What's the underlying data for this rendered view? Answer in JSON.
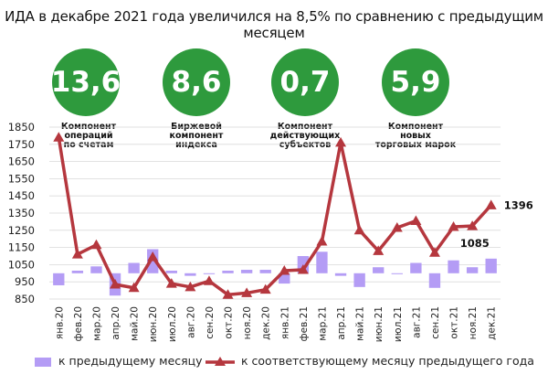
{
  "title": "ИДА в декабре 2021 года увеличился на 8,5% по сравнению с предыдущим месяцем",
  "kpis": [
    {
      "value": "13,6",
      "label_lines": [
        "Компонент",
        "операций",
        "по счетам"
      ]
    },
    {
      "value": "8,6",
      "label_lines": [
        "Биржевой",
        "компонент",
        "индекса"
      ]
    },
    {
      "value": "0,7",
      "label_lines": [
        "Компонент",
        "действующих",
        "субъектов"
      ]
    },
    {
      "value": "5,9",
      "label_lines": [
        "Компонент",
        "новых",
        "торговых марок"
      ]
    }
  ],
  "colors": {
    "kpi_green": "#2e9a3d",
    "bar": "#b49cf5",
    "line": "#b5373e",
    "grid": "#d9d9d9"
  },
  "chart_data": {
    "type": "bar",
    "categories": [
      "янв.20",
      "фев.20",
      "мар.20",
      "апр.20",
      "май.20",
      "июн.20",
      "июл.20",
      "авг.20",
      "сен.20",
      "окт.20",
      "ноя.20",
      "дек.20",
      "янв.21",
      "фев.21",
      "мар.21",
      "апр.21",
      "май.21",
      "июн.21",
      "июл.21",
      "авг.21",
      "сен.21",
      "окт.21",
      "ноя.21",
      "дек.21"
    ],
    "ylim": [
      850,
      1850
    ],
    "yticks": [
      850,
      950,
      1050,
      1150,
      1250,
      1350,
      1450,
      1550,
      1650,
      1750,
      1850
    ],
    "bar_baseline": 1000,
    "grid": "horizontal",
    "series": [
      {
        "name": "к предыдущему месяцу",
        "type": "bar",
        "values": [
          930,
          1015,
          1040,
          870,
          1060,
          1140,
          1015,
          985,
          1000,
          1015,
          1020,
          1020,
          940,
          1100,
          1125,
          985,
          920,
          1035,
          1000,
          1060,
          915,
          1075,
          1035,
          1085
        ]
      },
      {
        "name": "к соответствующему месяцу предыдущего года",
        "type": "line",
        "values": [
          1790,
          1110,
          1165,
          935,
          915,
          1095,
          940,
          920,
          955,
          875,
          885,
          905,
          1015,
          1020,
          1185,
          1760,
          1250,
          1130,
          1265,
          1305,
          1120,
          1270,
          1275,
          1396
        ]
      }
    ],
    "data_labels": [
      {
        "series": 1,
        "index": 23,
        "text": "1396"
      },
      {
        "series": 0,
        "index": 23,
        "text": "1085"
      }
    ]
  },
  "legend": {
    "items": [
      {
        "label": "к предыдущему месяцу",
        "kind": "bar"
      },
      {
        "label": "к соответствующему месяцу предыдущего года",
        "kind": "line"
      }
    ]
  }
}
